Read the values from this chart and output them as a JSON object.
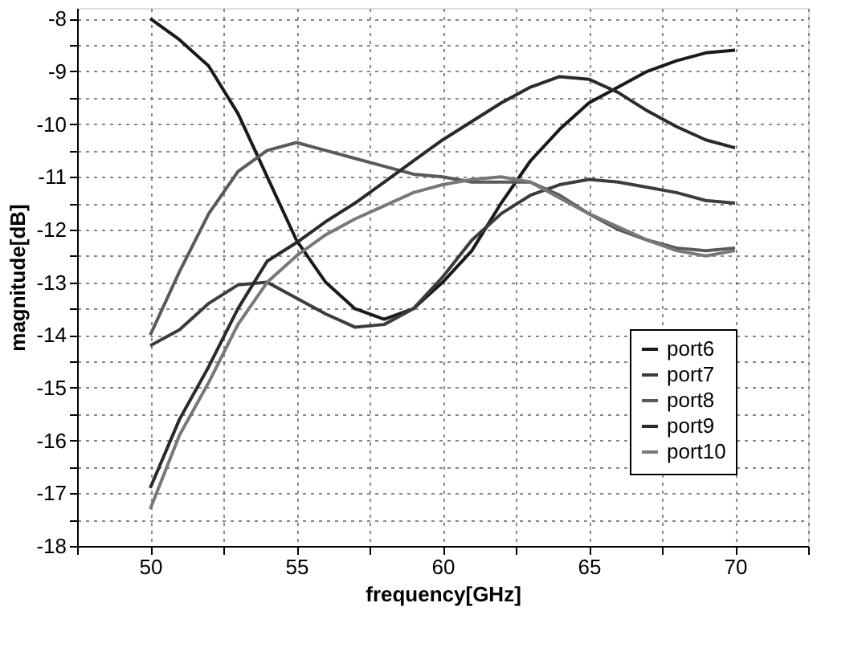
{
  "chart_data": {
    "type": "line",
    "xlabel": "frequency[GHz]",
    "ylabel": "magnitude[dB]",
    "xlim": [
      47.5,
      72.5
    ],
    "ylim": [
      -18,
      -7.8
    ],
    "xticks": [
      {
        "value": 47.5,
        "label": null
      },
      50,
      {
        "value": 52.5,
        "label": null
      },
      55,
      {
        "value": 57.5,
        "label": null
      },
      60,
      {
        "value": 62.5,
        "label": null
      },
      65,
      {
        "value": 67.5,
        "label": null
      },
      70,
      {
        "value": 72.5,
        "label": null
      }
    ],
    "yticks": [
      -18,
      {
        "value": -17.5,
        "label": null
      },
      -17,
      {
        "value": -16.5,
        "label": null
      },
      -16,
      {
        "value": -15.5,
        "label": null
      },
      -15,
      {
        "value": -14.5,
        "label": null
      },
      -14,
      {
        "value": -13.5,
        "label": null
      },
      -13,
      {
        "value": -12.5,
        "label": null
      },
      -12,
      {
        "value": -11.5,
        "label": null
      },
      -11,
      {
        "value": -10.5,
        "label": null
      },
      -10,
      {
        "value": -9.5,
        "label": null
      },
      -9,
      {
        "value": -8.5,
        "label": null
      },
      -8
    ],
    "x": [
      50,
      51,
      52,
      53,
      54,
      55,
      56,
      57,
      58,
      59,
      60,
      61,
      62,
      63,
      64,
      65,
      66,
      67,
      68,
      69,
      70
    ],
    "grid": true,
    "legend": "bottom right",
    "line_style": "solid",
    "series": [
      {
        "name": "port6",
        "color": "#1a1a1a",
        "values": [
          -8,
          -8.4,
          -8.9,
          -9.8,
          -11,
          -12.2,
          -13.0,
          -13.5,
          -13.7,
          -13.5,
          -13.0,
          -12.4,
          -11.5,
          -10.7,
          -10.1,
          -9.6,
          -9.3,
          -9.0,
          -8.8,
          -8.65,
          -8.6
        ]
      },
      {
        "name": "port7",
        "color": "#3c3c3c",
        "values": [
          -14.2,
          -13.9,
          -13.4,
          -13.05,
          -13.0,
          -13.3,
          -13.6,
          -13.85,
          -13.8,
          -13.5,
          -12.9,
          -12.2,
          -11.7,
          -11.35,
          -11.15,
          -11.05,
          -11.1,
          -11.2,
          -11.3,
          -11.45,
          -11.5
        ]
      },
      {
        "name": "port8",
        "color": "#5a5a5a",
        "values": [
          -14.0,
          -12.8,
          -11.7,
          -10.9,
          -10.5,
          -10.35,
          -10.5,
          -10.65,
          -10.8,
          -10.95,
          -11.0,
          -11.1,
          -11.1,
          -11.1,
          -11.35,
          -11.7,
          -12.0,
          -12.2,
          -12.35,
          -12.4,
          -12.35
        ]
      },
      {
        "name": "port9",
        "color": "#2a2a2a",
        "values": [
          -16.9,
          -15.6,
          -14.6,
          -13.5,
          -12.6,
          -12.25,
          -11.85,
          -11.5,
          -11.1,
          -10.7,
          -10.3,
          -9.95,
          -9.6,
          -9.3,
          -9.1,
          -9.15,
          -9.4,
          -9.75,
          -10.05,
          -10.3,
          -10.45
        ]
      },
      {
        "name": "port10",
        "color": "#787878",
        "values": [
          -17.3,
          -15.9,
          -14.9,
          -13.8,
          -13.0,
          -12.5,
          -12.1,
          -11.8,
          -11.55,
          -11.3,
          -11.15,
          -11.05,
          -11.0,
          -11.1,
          -11.4,
          -11.7,
          -11.95,
          -12.2,
          -12.4,
          -12.5,
          -12.4
        ]
      }
    ]
  }
}
